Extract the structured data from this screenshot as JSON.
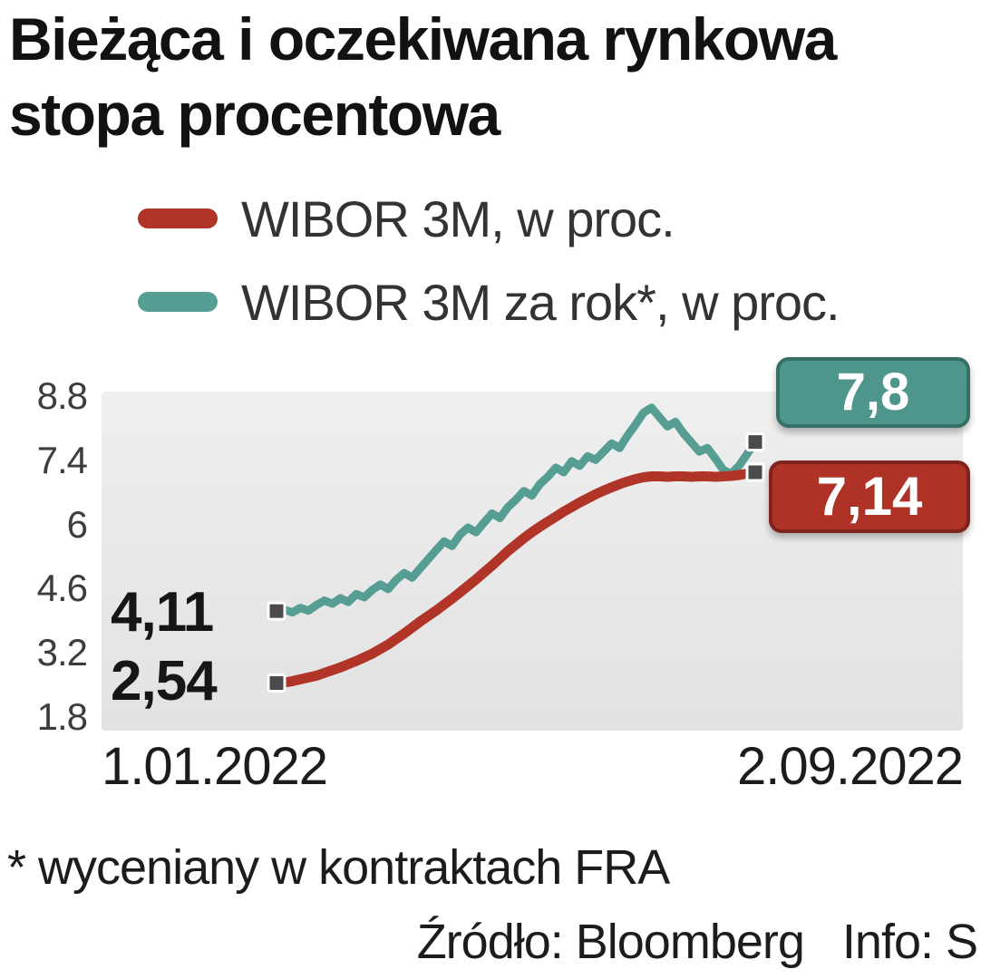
{
  "header": {
    "title": "Bieżąca i oczekiwana rynkowa\nstopa procentowa"
  },
  "legend": {
    "items": [
      {
        "label": "WIBOR 3M, w proc.",
        "color": "#b03428"
      },
      {
        "label": "WIBOR 3M za rok*, w proc.",
        "color": "#569d94"
      }
    ]
  },
  "colors": {
    "wibor_line": "#b03428",
    "fra_line": "#569d94",
    "wibor_badge_bg": "#ae3226",
    "wibor_badge_border": "#7e241b",
    "fra_badge_bg": "#4e968c",
    "fra_badge_border": "#366f66",
    "marker": "#4a4a4a",
    "panel_top": "#efefef",
    "panel_bottom": "#e2e2e2"
  },
  "chart_data": {
    "type": "line",
    "title": "Bieżąca i oczekiwana rynkowa stopa procentowa",
    "x_axis": {
      "start_label": "1.01.2022",
      "end_label": "2.09.2022"
    },
    "ylim": [
      1.5,
      8.9
    ],
    "yticks": [
      8.8,
      7.4,
      6,
      4.6,
      3.2,
      1.8
    ],
    "grid": false,
    "legend_position": "top-left",
    "series": [
      {
        "name": "WIBOR 3M, w proc.",
        "color": "#b03428",
        "start_value": 2.54,
        "end_value": 7.14,
        "values": [
          2.54,
          2.55,
          2.58,
          2.62,
          2.66,
          2.7,
          2.76,
          2.82,
          2.88,
          2.95,
          3.02,
          3.1,
          3.18,
          3.28,
          3.38,
          3.5,
          3.62,
          3.75,
          3.88,
          4.0,
          4.12,
          4.25,
          4.38,
          4.52,
          4.66,
          4.8,
          4.95,
          5.1,
          5.26,
          5.42,
          5.56,
          5.7,
          5.83,
          5.95,
          6.06,
          6.17,
          6.28,
          6.38,
          6.48,
          6.57,
          6.66,
          6.74,
          6.81,
          6.88,
          6.94,
          6.99,
          7.03,
          7.05,
          7.05,
          7.04,
          7.05,
          7.05,
          7.04,
          7.05,
          7.05,
          7.04,
          7.05,
          7.06,
          7.08,
          7.11,
          7.14
        ]
      },
      {
        "name": "WIBOR 3M za rok*, w proc.",
        "color": "#569d94",
        "start_value": 4.11,
        "end_value": 7.8,
        "values": [
          4.11,
          4.14,
          4.08,
          4.18,
          4.12,
          4.24,
          4.34,
          4.27,
          4.39,
          4.31,
          4.48,
          4.41,
          4.57,
          4.69,
          4.59,
          4.79,
          4.94,
          4.84,
          5.04,
          5.24,
          5.44,
          5.63,
          5.53,
          5.78,
          5.93,
          5.83,
          6.04,
          6.24,
          6.14,
          6.38,
          6.54,
          6.73,
          6.63,
          6.88,
          7.04,
          7.24,
          7.14,
          7.38,
          7.28,
          7.49,
          7.41,
          7.59,
          7.77,
          7.67,
          7.94,
          8.18,
          8.44,
          8.55,
          8.34,
          8.14,
          8.24,
          7.99,
          7.79,
          7.59,
          7.67,
          7.44,
          7.19,
          7.11,
          7.29,
          7.54,
          7.8
        ]
      }
    ]
  },
  "annotations": {
    "fra_start": "4,11",
    "wibor_start": "2,54",
    "fra_end": "7,8",
    "wibor_end": "7,14"
  },
  "footer": {
    "footnote": "* wyceniany w kontraktach FRA",
    "source": "Źródło: Bloomberg   Info: S"
  }
}
